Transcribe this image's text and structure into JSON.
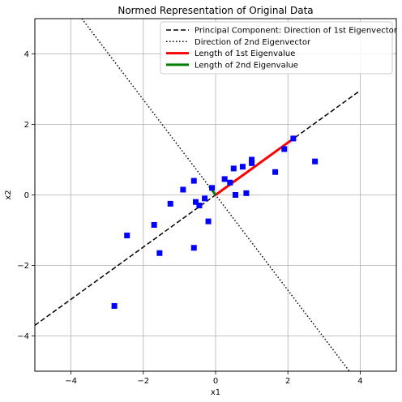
{
  "chart_data": {
    "type": "scatter",
    "title": "Normed Representation of Original Data",
    "xlabel": "x1",
    "ylabel": "x2",
    "xlim": [
      -5,
      5
    ],
    "ylim": [
      -5,
      5
    ],
    "xticks": [
      -4,
      -2,
      0,
      2,
      4
    ],
    "yticks": [
      -4,
      -2,
      0,
      2,
      4
    ],
    "tick_labels_x": [
      "−4",
      "−2",
      "0",
      "2",
      "4"
    ],
    "tick_labels_y": [
      "−4",
      "−2",
      "0",
      "2",
      "4"
    ],
    "grid": true,
    "legend_position": "top-right",
    "points": {
      "color": "#0000ff",
      "x": [
        -2.8,
        -2.45,
        -1.7,
        -1.55,
        -1.25,
        -0.9,
        -0.6,
        -0.6,
        -0.55,
        -0.45,
        -0.3,
        -0.2,
        -0.1,
        0.25,
        0.4,
        0.5,
        0.55,
        0.75,
        0.85,
        1.0,
        1.0,
        1.65,
        1.9,
        2.15,
        2.75
      ],
      "y": [
        -3.15,
        -1.15,
        -0.85,
        -1.65,
        -0.25,
        0.15,
        -1.5,
        0.4,
        -0.2,
        -0.3,
        -0.1,
        -0.75,
        0.2,
        0.45,
        0.35,
        0.75,
        0.0,
        0.8,
        0.05,
        0.9,
        1.0,
        0.65,
        1.3,
        1.6,
        0.95
      ]
    },
    "lines": [
      {
        "name": "Principal Component: Direction of 1st Eigenvector",
        "style": "dashed",
        "color": "#000000",
        "x": [
          -5,
          4
        ],
        "y": [
          -3.7,
          2.96
        ]
      },
      {
        "name": "Direction of 2nd Eigenvector",
        "style": "dotted",
        "color": "#000000",
        "x": [
          -3.7,
          3.7
        ],
        "y": [
          5.0,
          -5.0
        ]
      },
      {
        "name": "Length of 1st Eigenvalue",
        "style": "solid",
        "color": "#ff0000",
        "x": [
          0,
          2.2
        ],
        "y": [
          0,
          1.63
        ]
      },
      {
        "name": "Length of 2nd Eigenvalue",
        "style": "solid",
        "color": "#008000",
        "x": [
          0,
          -0.18
        ],
        "y": [
          0,
          0.25
        ]
      }
    ]
  }
}
